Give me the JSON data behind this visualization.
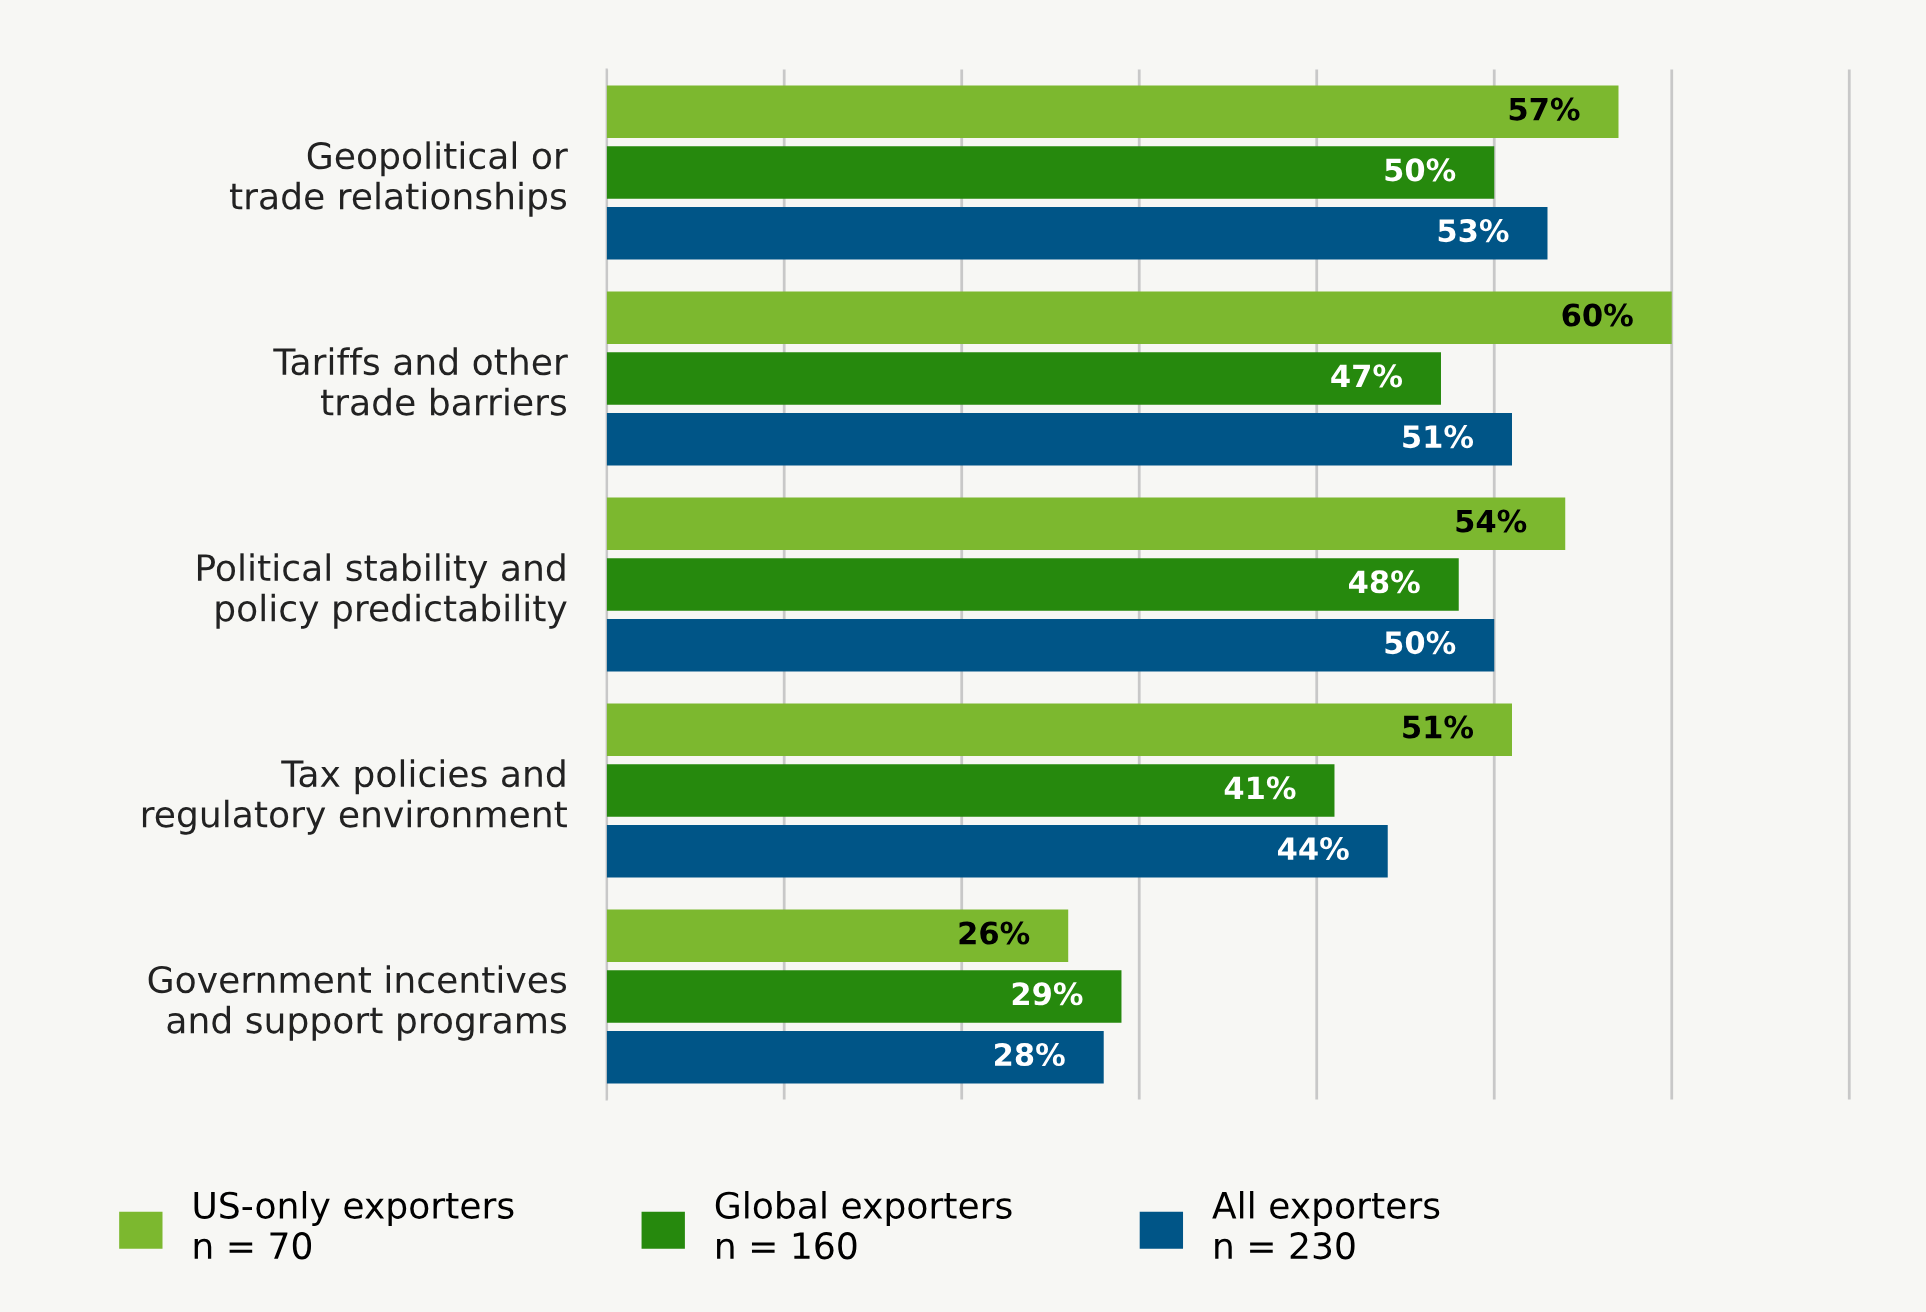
{
  "chart_data": {
    "type": "bar",
    "orientation": "horizontal",
    "categories": [
      "Geopolitical or\ntrade relationships",
      "Tariffs and other\ntrade barriers",
      "Political stability and\npolicy predictability",
      "Tax policies and\nregulatory environment",
      "Government incentives\nand support programs"
    ],
    "series": [
      {
        "name": "US-only exporters\nn = 70",
        "color": "#7cb82f",
        "values": [
          57,
          60,
          54,
          51,
          26
        ],
        "value_labels": [
          "57%",
          "60%",
          "54%",
          "51%",
          "26%"
        ]
      },
      {
        "name": "Global exporters\nn = 160",
        "color": "#26890d",
        "values": [
          50,
          47,
          48,
          41,
          29
        ],
        "value_labels": [
          "50%",
          "47%",
          "48%",
          "41%",
          "29%"
        ]
      },
      {
        "name": "All exporters\nn = 230",
        "color": "#005587",
        "values": [
          53,
          51,
          50,
          44,
          28
        ],
        "value_labels": [
          "53%",
          "51%",
          "50%",
          "44%",
          "28%"
        ]
      }
    ],
    "tick_labels": "y",
    "grid": "x",
    "legend": "bottom"
  }
}
